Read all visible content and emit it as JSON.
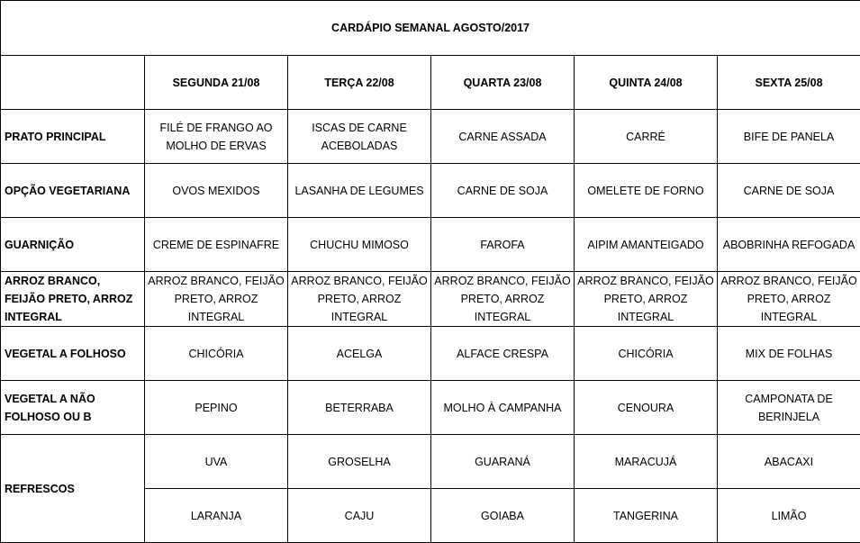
{
  "title": "CARDÁPIO SEMANAL AGOSTO/2017",
  "days": [
    "SEGUNDA   21/08",
    "TERÇA 22/08",
    "QUARTA 23/08",
    "QUINTA 24/08",
    "SEXTA 25/08"
  ],
  "rows": [
    {
      "label": "PRATO PRINCIPAL",
      "cells": [
        "FILÉ DE FRANGO AO MOLHO DE ERVAS",
        "ISCAS DE CARNE ACEBOLADAS",
        "CARNE ASSADA",
        "CARRÉ",
        "BIFE DE PANELA"
      ]
    },
    {
      "label": "OPÇÃO VEGETARIANA",
      "cells": [
        "OVOS MEXIDOS",
        "LASANHA DE LEGUMES",
        "CARNE DE SOJA",
        "OMELETE DE FORNO",
        "CARNE DE SOJA"
      ]
    },
    {
      "label": "GUARNIÇÃO",
      "cells": [
        "CREME DE ESPINAFRE",
        "CHUCHU MIMOSO",
        "FAROFA",
        "AIPIM AMANTEIGADO",
        "ABOBRINHA REFOGADA"
      ]
    },
    {
      "label": "ARROZ BRANCO, FEIJÃO PRETO, ARROZ INTEGRAL",
      "cells": [
        "ARROZ BRANCO, FEIJÃO PRETO, ARROZ INTEGRAL",
        "ARROZ BRANCO, FEIJÃO PRETO, ARROZ INTEGRAL",
        "ARROZ BRANCO, FEIJÃO PRETO, ARROZ INTEGRAL",
        "ARROZ BRANCO, FEIJÃO PRETO, ARROZ INTEGRAL",
        "ARROZ BRANCO, FEIJÃO PRETO, ARROZ INTEGRAL"
      ]
    },
    {
      "label": "VEGETAL A FOLHOSO",
      "cells": [
        "CHICÓRIA",
        "ACELGA",
        "ALFACE CRESPA",
        "CHICÓRIA",
        "MIX DE FOLHAS"
      ]
    },
    {
      "label": "VEGETAL A NÃO FOLHOSO OU B",
      "cells": [
        "PEPINO",
        "BETERRABA",
        "MOLHO À CAMPANHA",
        "CENOURA",
        "CAMPONATA DE BERINJELA"
      ]
    }
  ],
  "refrescos": {
    "label": "REFRESCOS",
    "rows": [
      [
        "UVA",
        "GROSELHA",
        "GUARANÁ",
        "MARACUJÁ",
        "ABACAXI"
      ],
      [
        "LARANJA",
        "CAJU",
        "GOIABA",
        "TANGERINA",
        "LIMÃO"
      ]
    ]
  }
}
